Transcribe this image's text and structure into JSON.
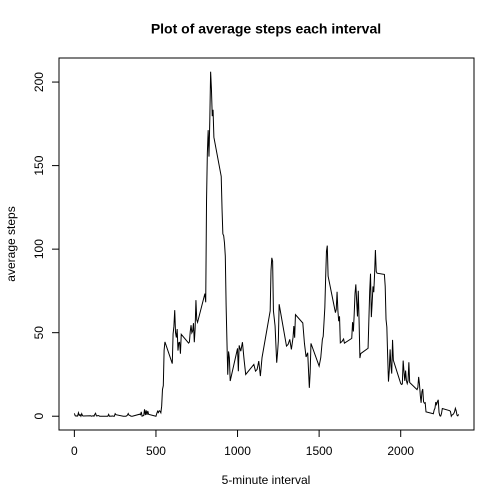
{
  "chart_data": {
    "type": "line",
    "title": "Plot of average steps each interval",
    "xlabel": "5-minute interval",
    "ylabel": "average steps",
    "xlim": [
      -94.2,
      2449.2
    ],
    "ylim": [
      -8.25,
      214.4
    ],
    "xticks": [
      0,
      500,
      1000,
      1500,
      2000
    ],
    "yticks": [
      0,
      50,
      100,
      150,
      200
    ],
    "color": "#000000",
    "x": [
      0,
      5,
      10,
      15,
      20,
      25,
      30,
      35,
      40,
      45,
      50,
      55,
      100,
      105,
      110,
      115,
      120,
      125,
      130,
      135,
      140,
      145,
      150,
      155,
      200,
      205,
      210,
      215,
      220,
      225,
      230,
      235,
      240,
      245,
      250,
      255,
      300,
      305,
      310,
      315,
      320,
      325,
      330,
      335,
      340,
      345,
      350,
      355,
      400,
      405,
      410,
      415,
      420,
      425,
      430,
      435,
      440,
      445,
      450,
      455,
      500,
      505,
      510,
      515,
      520,
      525,
      530,
      535,
      540,
      545,
      550,
      555,
      600,
      605,
      610,
      615,
      620,
      625,
      630,
      635,
      640,
      645,
      650,
      655,
      700,
      705,
      710,
      715,
      720,
      725,
      730,
      735,
      740,
      745,
      750,
      755,
      800,
      805,
      810,
      815,
      820,
      825,
      830,
      835,
      840,
      845,
      850,
      855,
      900,
      905,
      910,
      915,
      920,
      925,
      930,
      935,
      940,
      945,
      950,
      955,
      1000,
      1005,
      1010,
      1020,
      1030,
      1040,
      1050,
      1100,
      1110,
      1120,
      1130,
      1140,
      1150,
      1200,
      1205,
      1210,
      1215,
      1220,
      1230,
      1240,
      1245,
      1250,
      1255,
      1300,
      1310,
      1320,
      1330,
      1340,
      1345,
      1350,
      1355,
      1400,
      1410,
      1420,
      1430,
      1440,
      1445,
      1450,
      1500,
      1510,
      1520,
      1525,
      1535,
      1540,
      1545,
      1550,
      1555,
      1600,
      1605,
      1610,
      1615,
      1620,
      1625,
      1630,
      1640,
      1645,
      1650,
      1655,
      1700,
      1705,
      1710,
      1715,
      1720,
      1725,
      1730,
      1735,
      1740,
      1745,
      1750,
      1755,
      1800,
      1805,
      1810,
      1815,
      1820,
      1825,
      1830,
      1835,
      1840,
      1845,
      1850,
      1855,
      1900,
      1905,
      1910,
      1915,
      1920,
      1925,
      1930,
      1935,
      1940,
      1945,
      1950,
      1955,
      2000,
      2005,
      2010,
      2015,
      2020,
      2025,
      2030,
      2035,
      2040,
      2045,
      2050,
      2055,
      2100,
      2105,
      2110,
      2115,
      2120,
      2125,
      2130,
      2135,
      2140,
      2145,
      2150,
      2155,
      2200,
      2205,
      2210,
      2215,
      2220,
      2225,
      2230,
      2235,
      2240,
      2245,
      2250,
      2255,
      2300,
      2305,
      2310,
      2315,
      2320,
      2325,
      2330,
      2335,
      2340,
      2345,
      2350,
      2355
    ],
    "values": [
      1.7,
      0.3,
      0.1,
      0.2,
      0.1,
      2.1,
      0.5,
      0.9,
      0,
      1.5,
      0.3,
      0.1,
      0.3,
      0,
      0.1,
      0.3,
      0,
      1.1,
      1.8,
      0.2,
      0.2,
      0.4,
      0.3,
      0,
      0,
      0,
      1.1,
      0,
      0,
      0.1,
      0,
      0.2,
      0,
      0,
      1.5,
      0.9,
      0,
      0,
      0,
      0,
      0.2,
      0.6,
      1.6,
      0.6,
      0.5,
      0.1,
      0,
      0,
      1.2,
      0.9,
      2.6,
      0,
      0.3,
      0.4,
      4.1,
      0.7,
      3.5,
      0.8,
      3.1,
      1.1,
      0,
      1.6,
      3,
      2.2,
      3.3,
      3,
      2.1,
      6,
      16,
      18.3,
      39.5,
      44.5,
      31.5,
      49.3,
      53.8,
      63.5,
      50,
      47.1,
      52.2,
      39.3,
      44,
      44.2,
      37.4,
      49,
      43.8,
      44.4,
      50.5,
      54.5,
      49.9,
      51,
      55.7,
      44.3,
      52.3,
      69.5,
      57.8,
      56.2,
      73.4,
      68.2,
      129.4,
      157.5,
      171.2,
      155.4,
      177.3,
      206.2,
      195.9,
      179.6,
      183.4,
      167,
      143.5,
      124,
      109.1,
      108.1,
      103.7,
      95.9,
      66.2,
      45.2,
      24.8,
      38.8,
      35,
      21.1,
      40.6,
      26.9,
      42.4,
      38.9,
      44.3,
      34,
      25,
      31,
      27,
      28,
      33,
      24,
      35,
      63,
      87,
      94.8,
      92.8,
      63,
      54,
      32,
      37.7,
      45,
      67,
      42,
      43,
      46,
      40,
      47,
      54,
      47,
      60.8,
      55.8,
      43.6,
      35.5,
      38,
      17,
      26,
      43.6,
      30,
      35,
      46,
      47.8,
      65,
      82.9,
      98.7,
      102.1,
      83.9,
      62,
      64,
      74.5,
      63.2,
      56.9,
      59.8,
      43.9,
      44.7,
      45.5,
      46.2,
      43.7,
      46.6,
      56.3,
      50.7,
      61.2,
      73.4,
      78.9,
      68.9,
      59.7,
      75.1,
      56.5,
      34.8,
      37.5,
      40.7,
      58,
      74.7,
      85.3,
      59.3,
      67.8,
      77.7,
      74.2,
      85.3,
      99.5,
      86.6,
      85.6,
      84.9,
      77.8,
      58,
      53.4,
      36.3,
      20.7,
      27.4,
      40,
      30.2,
      25.5,
      45.7,
      33.5,
      19.6,
      19,
      19.3,
      33.3,
      26.8,
      21.2,
      27.3,
      21.3,
      19.5,
      21.3,
      32.3,
      20.2,
      15.9,
      17.2,
      23.5,
      19.2,
      12.5,
      8,
      14.7,
      16.3,
      8.7,
      7.8,
      8.1,
      2.6,
      1.5,
      3.7,
      4.8,
      8.5,
      7.1,
      8.7,
      9.8,
      2.2,
      0.3,
      0.1,
      1.6,
      4.6,
      3.3,
      2.8,
      0,
      0.8,
      1,
      1.6,
      2.6,
      4.7,
      3.3,
      0.6,
      0.2,
      1.1
    ]
  }
}
